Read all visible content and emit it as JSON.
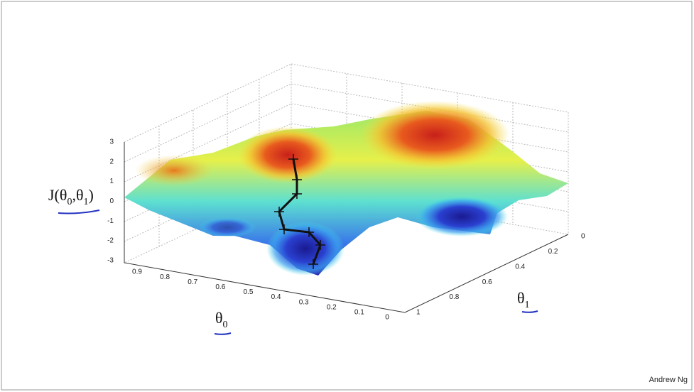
{
  "slide": {
    "z_label": [
      "J(θ",
      "0",
      ",θ",
      "1",
      ")"
    ],
    "x_label": [
      "θ",
      "0"
    ],
    "y_label": [
      "θ",
      "1"
    ],
    "z_ticks": [
      3,
      2,
      1,
      0,
      -1,
      -2,
      -3
    ],
    "x_ticks": [
      0.9,
      0.8,
      0.7,
      0.6,
      0.5,
      0.4,
      0.3,
      0.2,
      0.1,
      0
    ],
    "y_ticks": [
      0,
      0.2,
      0.4,
      0.6,
      0.8,
      1
    ],
    "credit": "Andrew Ng"
  }
}
